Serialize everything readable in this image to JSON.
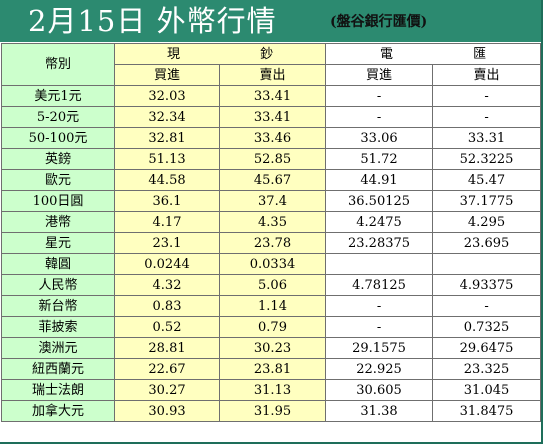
{
  "header": {
    "title": "2月15日 外幣行情",
    "source": "(盤谷銀行匯價)"
  },
  "table": {
    "currency_header": "幣別",
    "groups": [
      "現 鈔",
      "電 匯"
    ],
    "subheaders": [
      "買進",
      "賣出",
      "買進",
      "賣出"
    ],
    "rows": [
      {
        "currency": "美元1元",
        "cash_buy": "32.03",
        "cash_sell": "33.41",
        "wire_buy": "-",
        "wire_sell": "-"
      },
      {
        "currency": "5-20元",
        "cash_buy": "32.34",
        "cash_sell": "33.41",
        "wire_buy": "-",
        "wire_sell": "-"
      },
      {
        "currency": "50-100元",
        "cash_buy": "32.81",
        "cash_sell": "33.46",
        "wire_buy": "33.06",
        "wire_sell": "33.31"
      },
      {
        "currency": "英鎊",
        "cash_buy": "51.13",
        "cash_sell": "52.85",
        "wire_buy": "51.72",
        "wire_sell": "52.3225"
      },
      {
        "currency": "歐元",
        "cash_buy": "44.58",
        "cash_sell": "45.67",
        "wire_buy": "44.91",
        "wire_sell": "45.47"
      },
      {
        "currency": "100日圓",
        "cash_buy": "36.1",
        "cash_sell": "37.4",
        "wire_buy": "36.50125",
        "wire_sell": "37.1775"
      },
      {
        "currency": "港幣",
        "cash_buy": "4.17",
        "cash_sell": "4.35",
        "wire_buy": "4.2475",
        "wire_sell": "4.295"
      },
      {
        "currency": "星元",
        "cash_buy": "23.1",
        "cash_sell": "23.78",
        "wire_buy": "23.28375",
        "wire_sell": "23.695"
      },
      {
        "currency": "韓圓",
        "cash_buy": "0.0244",
        "cash_sell": "0.0334",
        "wire_buy": "",
        "wire_sell": ""
      },
      {
        "currency": "人民幣",
        "cash_buy": "4.32",
        "cash_sell": "5.06",
        "wire_buy": "4.78125",
        "wire_sell": "4.93375"
      },
      {
        "currency": "新台幣",
        "cash_buy": "0.83",
        "cash_sell": "1.14",
        "wire_buy": "-",
        "wire_sell": "-"
      },
      {
        "currency": "菲披索",
        "cash_buy": "0.52",
        "cash_sell": "0.79",
        "wire_buy": "-",
        "wire_sell": "0.7325"
      },
      {
        "currency": "澳洲元",
        "cash_buy": "28.81",
        "cash_sell": "30.23",
        "wire_buy": "29.1575",
        "wire_sell": "29.6475"
      },
      {
        "currency": "紐西蘭元",
        "cash_buy": "22.67",
        "cash_sell": "23.81",
        "wire_buy": "22.925",
        "wire_sell": "23.325"
      },
      {
        "currency": "瑞士法朗",
        "cash_buy": "30.27",
        "cash_sell": "31.13",
        "wire_buy": "30.605",
        "wire_sell": "31.045"
      },
      {
        "currency": "加拿大元",
        "cash_buy": "30.93",
        "cash_sell": "31.95",
        "wire_buy": "31.38",
        "wire_sell": "31.8475"
      }
    ]
  },
  "colors": {
    "title_bar": "#2c8a70",
    "currency_column": "#ccffcc",
    "cash_columns": "#ffffc0",
    "wire_columns": "#ffffff",
    "grid": "#6f6f6f"
  }
}
